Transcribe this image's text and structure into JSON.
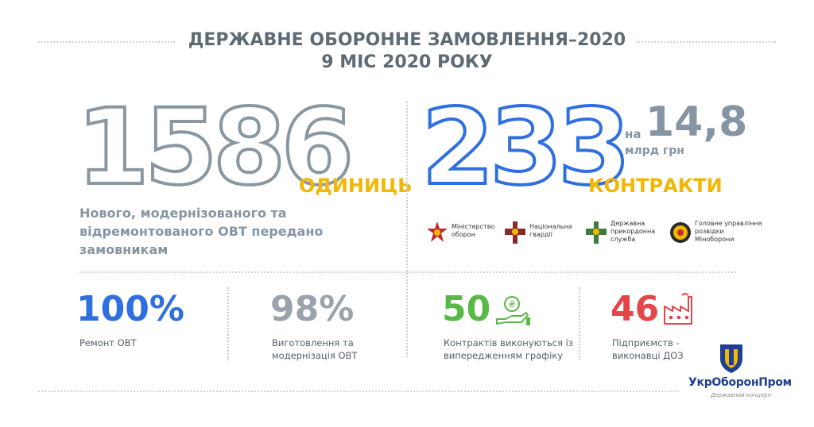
{
  "title": {
    "line1": "ДЕРЖАВНЕ ОБОРОННЕ ЗАМОВЛЕННЯ–2020",
    "line2": "9 МІС 2020 РОКУ"
  },
  "units": {
    "number": "1586",
    "label": "ОДИНИЦЬ",
    "description_line1": "Нового, модернізованого та",
    "description_line2": "відремонтованого ОВТ передано",
    "description_line3": "замовникам"
  },
  "contracts": {
    "number": "233",
    "label": "КОНТРАКТИ",
    "prefix": "на",
    "amount": "14,8",
    "amount_unit": "млрд грн"
  },
  "agencies": [
    {
      "line1": "Міністерство",
      "line2": "оборон",
      "line3": "",
      "icon": "ministry-of-defense-emblem"
    },
    {
      "line1": "Національна",
      "line2": "гвардії",
      "line3": "",
      "icon": "national-guard-emblem"
    },
    {
      "line1": "Державна",
      "line2": "прикордонна",
      "line3": "служба",
      "icon": "border-service-emblem"
    },
    {
      "line1": "Головне управління",
      "line2": "розвідки",
      "line3": "Міноборони",
      "icon": "intelligence-emblem"
    }
  ],
  "stats": [
    {
      "value": "100%",
      "label_line1": "Ремонт ОВТ",
      "label_line2": "",
      "color": "#2f6fe0"
    },
    {
      "value": "98%",
      "label_line1": "Виготовлення та",
      "label_line2": "модернізація ОВТ",
      "color": "#9aa3ab"
    },
    {
      "value": "50",
      "label_line1": "Контрактів виконуються із",
      "label_line2": "випередженням графіку",
      "color": "#59b947",
      "icon": "money-hand-icon"
    },
    {
      "value": "46",
      "label_line1": "Підприємств -",
      "label_line2": "виконавці ДОЗ",
      "color": "#e5464a",
      "icon": "factory-icon"
    }
  ],
  "logo": {
    "name": "УкрОборонПром",
    "subtitle": "Державний концерн",
    "icon": "ukroboronprom-logo"
  },
  "colors": {
    "blue": "#2f6fe0",
    "yellow": "#f2b705",
    "green": "#59b947",
    "red": "#e5464a",
    "grey": "#8a96a0"
  }
}
